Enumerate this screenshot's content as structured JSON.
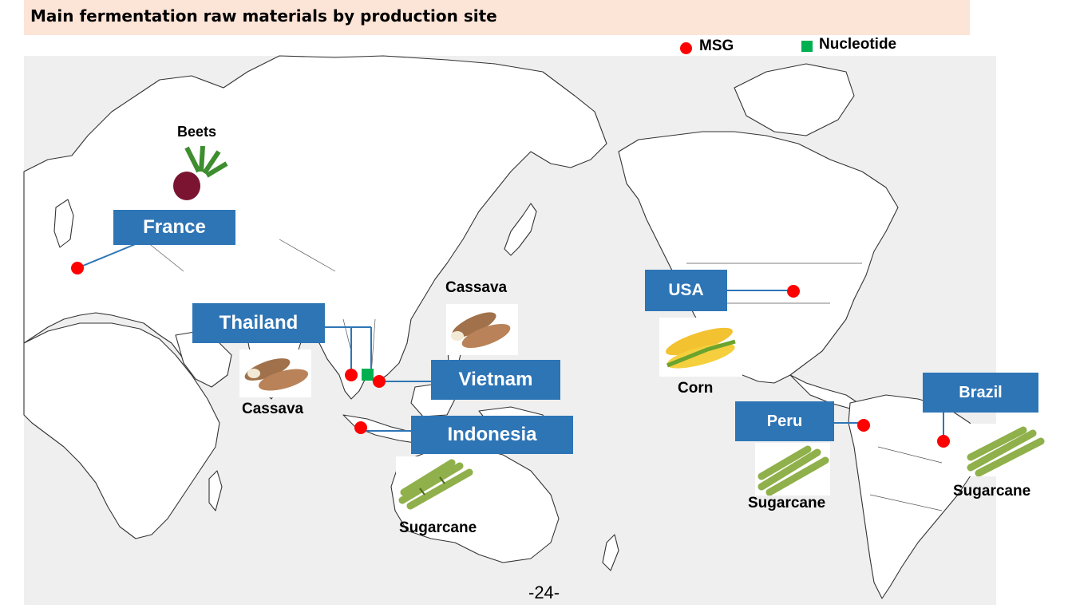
{
  "title": "Main fermentation raw materials by production site",
  "legend": {
    "msg": {
      "label": "MSG",
      "color": "#ff0000"
    },
    "nucleotide": {
      "label": "Nucleotide",
      "color": "#00b050"
    }
  },
  "colors": {
    "label_box": "#2e75b6",
    "map_sea": "#efefef",
    "title_bg": "#fce4d6"
  },
  "sites": {
    "france": "France",
    "thailand": "Thailand",
    "vietnam": "Vietnam",
    "indonesia": "Indonesia",
    "usa": "USA",
    "peru": "Peru",
    "brazil": "Brazil"
  },
  "materials": {
    "beets": "Beets",
    "cassava_thailand": "Cassava",
    "cassava_vietnam": "Cassava",
    "sugarcane_indonesia": "Sugarcane",
    "corn": "Corn",
    "sugarcane_peru": "Sugarcane",
    "sugarcane_brazil": "Sugarcane"
  },
  "icons": {
    "beets": "beet-icon",
    "cassava": "cassava-icon",
    "sugarcane": "sugarcane-icon",
    "corn": "corn-icon"
  },
  "page_number": "-24-"
}
